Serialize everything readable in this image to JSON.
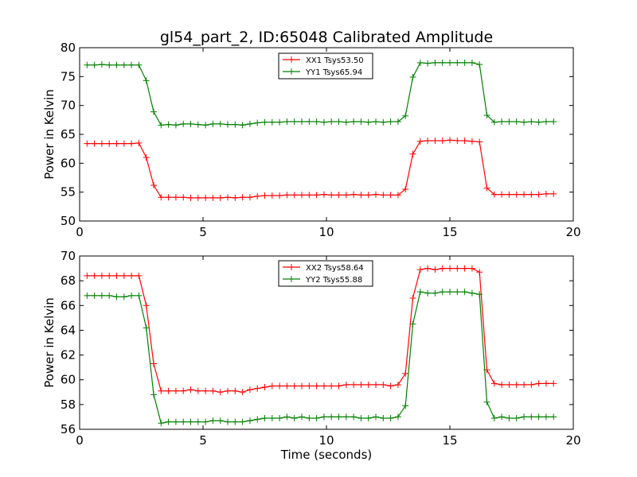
{
  "title": "gl54_part_2, ID:65048 Calibrated Amplitude",
  "chart_data": [
    {
      "type": "line",
      "ylabel": "Power in Kelvin",
      "xlabel": "",
      "xlim": [
        0,
        20
      ],
      "ylim": [
        50,
        80
      ],
      "xticks": [
        "0",
        "5",
        "10",
        "15",
        "20"
      ],
      "yticks": [
        "50",
        "55",
        "60",
        "65",
        "70",
        "75",
        "80"
      ],
      "x": [
        0.3,
        0.6,
        0.9,
        1.2,
        1.5,
        1.8,
        2.1,
        2.4,
        2.7,
        3.0,
        3.3,
        3.6,
        3.9,
        4.2,
        4.5,
        4.8,
        5.1,
        5.4,
        5.7,
        6.0,
        6.3,
        6.6,
        6.9,
        7.2,
        7.5,
        7.8,
        8.1,
        8.4,
        8.7,
        9.0,
        9.3,
        9.6,
        9.9,
        10.2,
        10.5,
        10.8,
        11.1,
        11.4,
        11.7,
        12.0,
        12.3,
        12.6,
        12.9,
        13.2,
        13.5,
        13.8,
        14.1,
        14.4,
        14.7,
        15.0,
        15.3,
        15.6,
        15.9,
        16.2,
        16.5,
        16.8,
        17.1,
        17.4,
        17.7,
        18.0,
        18.3,
        18.6,
        18.9,
        19.2
      ],
      "series": [
        {
          "name": "XX1 Tsys53.50",
          "color": "#ff0000",
          "values": [
            63.4,
            63.4,
            63.4,
            63.4,
            63.4,
            63.4,
            63.4,
            63.5,
            61.0,
            56.2,
            54.1,
            54.1,
            54.1,
            54.1,
            54.0,
            54.0,
            54.0,
            54.0,
            54.0,
            54.1,
            54.0,
            54.1,
            54.1,
            54.3,
            54.4,
            54.4,
            54.4,
            54.5,
            54.5,
            54.5,
            54.5,
            54.5,
            54.6,
            54.5,
            54.5,
            54.5,
            54.6,
            54.5,
            54.5,
            54.6,
            54.5,
            54.5,
            54.5,
            55.5,
            61.6,
            63.8,
            63.9,
            63.9,
            63.9,
            64.0,
            63.9,
            63.9,
            63.8,
            63.7,
            55.7,
            54.6,
            54.6,
            54.6,
            54.6,
            54.6,
            54.6,
            54.6,
            54.7,
            54.7
          ]
        },
        {
          "name": "YY1 Tsys65.94",
          "color": "#008000",
          "values": [
            77.0,
            77.0,
            77.1,
            77.0,
            77.0,
            77.0,
            77.0,
            77.0,
            74.3,
            68.9,
            66.6,
            66.7,
            66.6,
            66.8,
            66.8,
            66.7,
            66.6,
            66.8,
            66.8,
            66.7,
            66.7,
            66.6,
            66.8,
            67.0,
            67.1,
            67.1,
            67.1,
            67.2,
            67.2,
            67.2,
            67.2,
            67.2,
            67.1,
            67.2,
            67.2,
            67.1,
            67.2,
            67.2,
            67.1,
            67.2,
            67.1,
            67.2,
            67.2,
            68.2,
            74.9,
            77.4,
            77.3,
            77.4,
            77.4,
            77.4,
            77.4,
            77.4,
            77.4,
            77.1,
            68.3,
            67.1,
            67.2,
            67.2,
            67.2,
            67.1,
            67.2,
            67.1,
            67.2,
            67.2
          ]
        }
      ],
      "legend_position": "top-center",
      "grid": false
    },
    {
      "type": "line",
      "ylabel": "Power in Kelvin",
      "xlabel": "Time (seconds)",
      "xlim": [
        0,
        20
      ],
      "ylim": [
        56,
        70
      ],
      "xticks": [
        "0",
        "5",
        "10",
        "15",
        "20"
      ],
      "yticks": [
        "56",
        "58",
        "60",
        "62",
        "64",
        "66",
        "68",
        "70"
      ],
      "x": [
        0.3,
        0.6,
        0.9,
        1.2,
        1.5,
        1.8,
        2.1,
        2.4,
        2.7,
        3.0,
        3.3,
        3.6,
        3.9,
        4.2,
        4.5,
        4.8,
        5.1,
        5.4,
        5.7,
        6.0,
        6.3,
        6.6,
        6.9,
        7.2,
        7.5,
        7.8,
        8.1,
        8.4,
        8.7,
        9.0,
        9.3,
        9.6,
        9.9,
        10.2,
        10.5,
        10.8,
        11.1,
        11.4,
        11.7,
        12.0,
        12.3,
        12.6,
        12.9,
        13.2,
        13.5,
        13.8,
        14.1,
        14.4,
        14.7,
        15.0,
        15.3,
        15.6,
        15.9,
        16.2,
        16.5,
        16.8,
        17.1,
        17.4,
        17.7,
        18.0,
        18.3,
        18.6,
        18.9,
        19.2
      ],
      "series": [
        {
          "name": "XX2 Tsys58.64",
          "color": "#ff0000",
          "values": [
            68.4,
            68.4,
            68.4,
            68.4,
            68.4,
            68.4,
            68.4,
            68.4,
            66.0,
            61.3,
            59.1,
            59.1,
            59.1,
            59.1,
            59.2,
            59.1,
            59.1,
            59.1,
            59.0,
            59.1,
            59.1,
            59.0,
            59.2,
            59.3,
            59.4,
            59.5,
            59.5,
            59.5,
            59.5,
            59.5,
            59.5,
            59.5,
            59.5,
            59.5,
            59.5,
            59.6,
            59.6,
            59.6,
            59.6,
            59.6,
            59.6,
            59.5,
            59.6,
            60.5,
            66.6,
            68.9,
            69.0,
            68.9,
            69.0,
            69.0,
            69.0,
            69.0,
            69.0,
            68.7,
            60.8,
            59.7,
            59.6,
            59.6,
            59.6,
            59.6,
            59.6,
            59.7,
            59.7,
            59.7
          ]
        },
        {
          "name": "YY2 Tsys55.88",
          "color": "#008000",
          "values": [
            66.8,
            66.8,
            66.8,
            66.8,
            66.7,
            66.7,
            66.8,
            66.8,
            64.2,
            58.8,
            56.5,
            56.6,
            56.6,
            56.6,
            56.6,
            56.6,
            56.6,
            56.7,
            56.7,
            56.6,
            56.6,
            56.6,
            56.7,
            56.8,
            56.9,
            56.9,
            56.9,
            57.0,
            56.9,
            57.0,
            56.9,
            56.9,
            57.0,
            57.0,
            57.0,
            57.0,
            57.0,
            56.9,
            56.9,
            57.0,
            56.9,
            56.9,
            57.0,
            57.9,
            64.5,
            67.1,
            67.0,
            67.0,
            67.1,
            67.1,
            67.1,
            67.1,
            67.0,
            66.9,
            58.2,
            56.9,
            57.0,
            56.9,
            56.9,
            57.0,
            57.0,
            57.0,
            57.0,
            57.0
          ]
        }
      ],
      "legend_position": "top-center",
      "grid": false
    }
  ]
}
